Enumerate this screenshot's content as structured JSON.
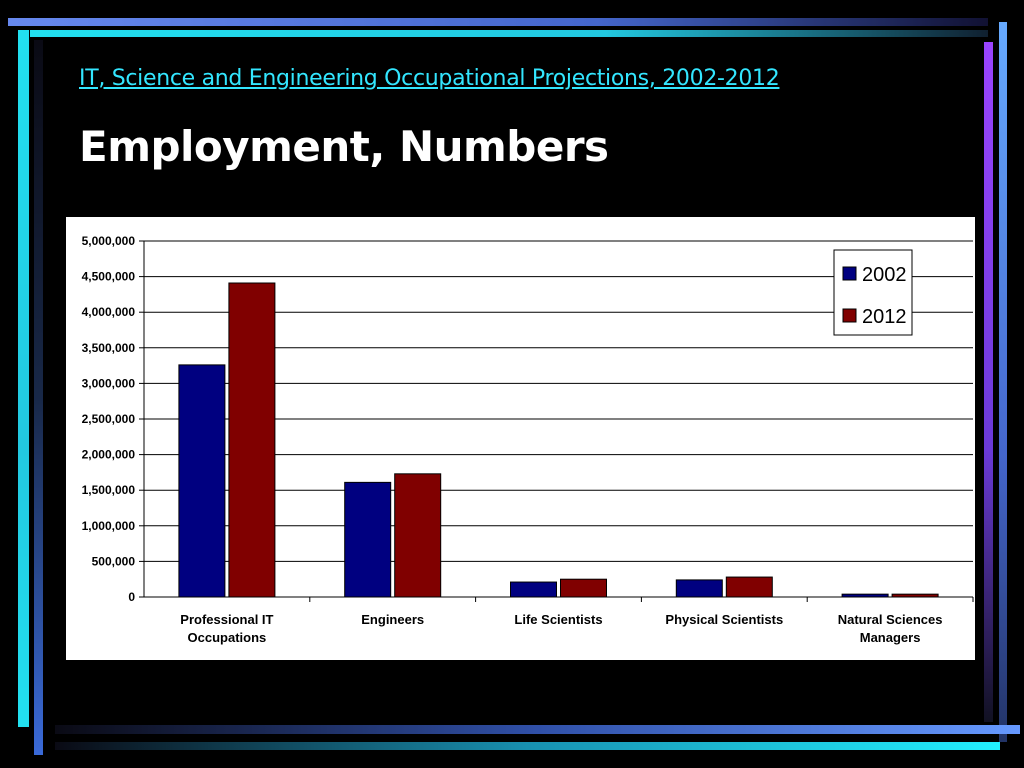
{
  "slide": {
    "subtitle": "IT, Science and Engineering Occupational Projections, 2002-2012",
    "title": "Employment, Numbers"
  },
  "colors": {
    "background": "#000000",
    "subtitle": "#33e6ff",
    "title": "#ffffff",
    "series_2002": "#000080",
    "series_2012": "#800000"
  },
  "chart_data": {
    "type": "bar",
    "categories": [
      [
        "Professional IT",
        "Occupations"
      ],
      [
        "Engineers"
      ],
      [
        "Life Scientists"
      ],
      [
        "Physical Scientists"
      ],
      [
        "Natural Sciences",
        "Managers"
      ]
    ],
    "series": [
      {
        "name": "2002",
        "color": "#000080",
        "values": [
          3260000,
          1610000,
          210000,
          240000,
          40000
        ]
      },
      {
        "name": "2012",
        "color": "#800000",
        "values": [
          4410000,
          1730000,
          250000,
          280000,
          40000
        ]
      }
    ],
    "ylim": [
      0,
      5000000
    ],
    "yticks": [
      "0",
      "500,000",
      "1,000,000",
      "1,500,000",
      "2,000,000",
      "2,500,000",
      "3,000,000",
      "3,500,000",
      "4,000,000",
      "4,500,000",
      "5,000,000"
    ],
    "ytick_values": [
      0,
      500000,
      1000000,
      1500000,
      2000000,
      2500000,
      3000000,
      3500000,
      4000000,
      4500000,
      5000000
    ],
    "grid": true,
    "legend": "top-right"
  }
}
